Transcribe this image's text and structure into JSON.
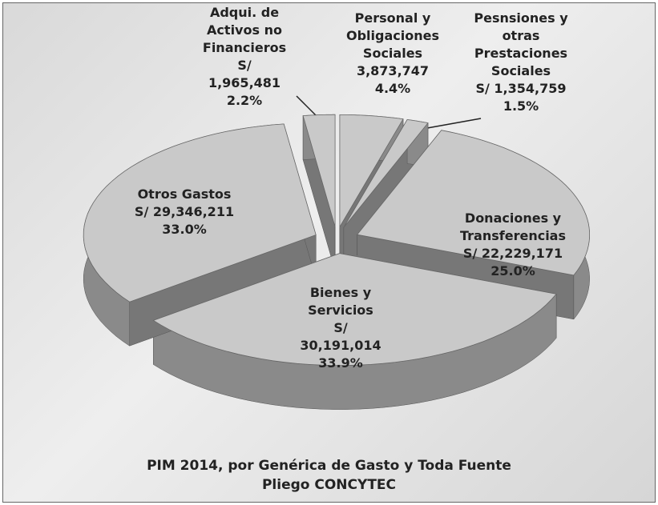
{
  "chart_data": {
    "type": "pie",
    "title": "PIM 2014, por Genérica de Gasto y Toda Fuente",
    "subtitle": "Pliego CONCYTEC",
    "categories": [
      "Personal y Obligaciones Sociales",
      "Pesnsiones y otras Prestaciones Sociales",
      "Donaciones y Transferencias",
      "Bienes y Servicios",
      "Otros Gastos",
      "Adqui. de Activos no Financieros"
    ],
    "values": [
      4.4,
      1.5,
      25.0,
      33.9,
      33.0,
      2.2
    ],
    "value_labels": [
      "4.4%",
      "1.5%",
      "25.0%",
      "33.9%",
      "33.0%",
      "2.2%"
    ],
    "amounts": [
      3873747,
      1354759,
      22229171,
      30191014,
      29346211,
      1965481
    ],
    "amount_labels": [
      "3,873,747",
      "S/ 1,354,759",
      "S/ 22,229,171",
      "S/ 30,191,014",
      "S/ 29,346,211",
      "S/ 1,965,481"
    ],
    "colors": [
      "#c9c9c9",
      "#c9c9c9",
      "#c9c9c9",
      "#c9c9c9",
      "#c9c9c9",
      "#c9c9c9"
    ],
    "side_color": "#8a8a8a"
  }
}
